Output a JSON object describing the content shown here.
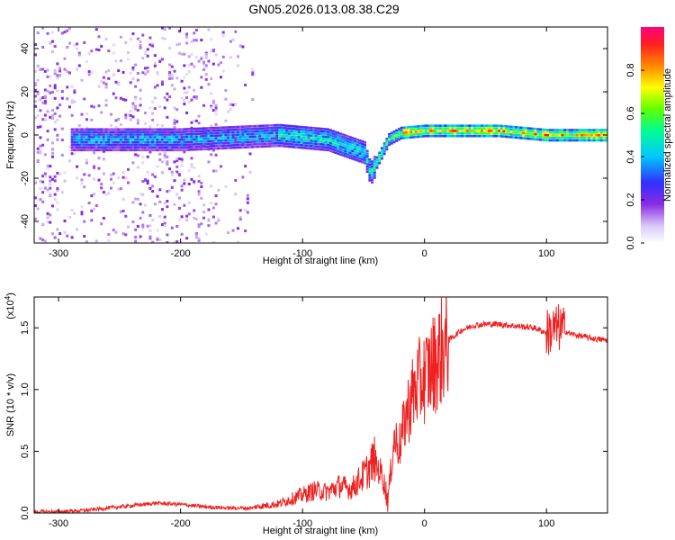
{
  "title": "GN05.2026.013.08.38.C29",
  "chart_data": [
    {
      "type": "heatmap",
      "xlabel": "Height of straight line (km)",
      "ylabel": "Frequency (Hz)",
      "xlim": [
        -320,
        150
      ],
      "ylim": [
        -50,
        50
      ],
      "xticks": [
        -300,
        -200,
        -100,
        0,
        100
      ],
      "yticks": [
        -40,
        -20,
        0,
        20,
        40
      ],
      "colorbar": {
        "label": "Normalized spectral amplitude",
        "range": [
          0,
          1
        ],
        "ticks": [
          "0.0",
          "0.2",
          "0.4",
          "0.6",
          "0.8"
        ],
        "colors": [
          "#ffffff",
          "#c0a0f0",
          "#7a20e0",
          "#4040ff",
          "#00c0ff",
          "#00ffa0",
          "#40ff00",
          "#ffff00",
          "#ff8000",
          "#ff2020",
          "#ff0080"
        ]
      },
      "signal_band_center_hz": [
        {
          "x": -290,
          "y": -2
        },
        {
          "x": -200,
          "y": -2
        },
        {
          "x": -120,
          "y": 0
        },
        {
          "x": -80,
          "y": -2
        },
        {
          "x": -50,
          "y": -8
        },
        {
          "x": -45,
          "y": -18
        },
        {
          "x": -30,
          "y": -2
        },
        {
          "x": -20,
          "y": 1
        },
        {
          "x": 0,
          "y": 2
        },
        {
          "x": 60,
          "y": 2
        },
        {
          "x": 100,
          "y": 0
        },
        {
          "x": 150,
          "y": 0
        }
      ],
      "grid": false
    },
    {
      "type": "line",
      "xlabel": "Height of straight line (km)",
      "ylabel": "SNR (10 * v/v)",
      "yscale_label": "(x10",
      "yscale_exp": "4",
      "xlim": [
        -320,
        150
      ],
      "ylim": [
        0,
        1.75
      ],
      "xticks": [
        -300,
        -200,
        -100,
        0,
        100
      ],
      "yticks": [
        "0.0",
        "0.5",
        "1.0",
        "1.5"
      ],
      "series": [
        {
          "color": "#ee2222",
          "x": [
            -320,
            -300,
            -280,
            -260,
            -240,
            -220,
            -200,
            -180,
            -160,
            -140,
            -120,
            -110,
            -100,
            -90,
            -80,
            -70,
            -60,
            -50,
            -45,
            -40,
            -35,
            -30,
            -25,
            -20,
            -15,
            -10,
            -5,
            0,
            10,
            20,
            30,
            40,
            50,
            60,
            70,
            80,
            90,
            100,
            110,
            120,
            130,
            140,
            150
          ],
          "values": [
            0.01,
            0.01,
            0.02,
            0.04,
            0.06,
            0.08,
            0.07,
            0.05,
            0.04,
            0.04,
            0.06,
            0.09,
            0.12,
            0.15,
            0.14,
            0.18,
            0.16,
            0.25,
            0.3,
            0.38,
            0.32,
            0.1,
            0.6,
            0.55,
            0.8,
            0.95,
            1.05,
            1.1,
            1.25,
            1.4,
            1.48,
            1.52,
            1.53,
            1.53,
            1.52,
            1.51,
            1.5,
            1.46,
            1.5,
            1.45,
            1.43,
            1.41,
            1.4
          ]
        }
      ],
      "grid": false
    }
  ]
}
